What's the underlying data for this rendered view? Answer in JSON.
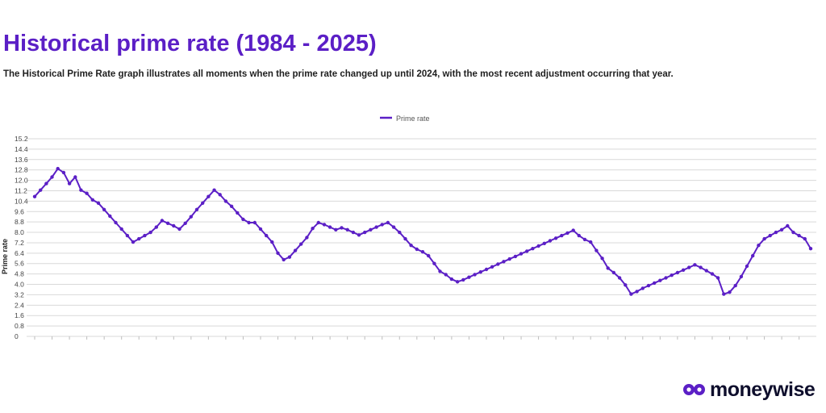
{
  "header": {
    "title": "Historical prime rate (1984 - 2025)",
    "subtitle": "The Historical Prime Rate graph illustrates all moments when the prime rate changed up until 2024, with the most recent adjustment occurring that year."
  },
  "brand": {
    "logo_text": "moneywise",
    "accent_color": "#5b1fc6",
    "logo_color": "#0e0e2c"
  },
  "chart_data": {
    "type": "line",
    "ylabel": "Prime rate",
    "xlabel": "",
    "ylim": [
      0,
      15.2
    ],
    "y_ticks": [
      "0",
      "0.8",
      "1.6",
      "2.4",
      "3.2",
      "4.0",
      "4.8",
      "5.6",
      "6.4",
      "7.2",
      "8.0",
      "8.8",
      "9.6",
      "10.4",
      "11.2",
      "12.0",
      "12.8",
      "13.6",
      "14.4",
      "15.2"
    ],
    "grid": true,
    "legend": "top-center",
    "series": [
      {
        "name": "Prime rate",
        "color": "#5b1fc6",
        "values": [
          10.75,
          11.25,
          11.75,
          12.25,
          12.9,
          12.6,
          11.75,
          12.25,
          11.25,
          11.0,
          10.5,
          10.25,
          9.75,
          9.25,
          8.75,
          8.25,
          7.75,
          7.25,
          7.5,
          7.75,
          8.0,
          8.4,
          8.9,
          8.7,
          8.5,
          8.25,
          8.7,
          9.2,
          9.75,
          10.25,
          10.75,
          11.25,
          10.9,
          10.4,
          10.0,
          9.5,
          9.0,
          8.75,
          8.75,
          8.25,
          7.75,
          7.25,
          6.4,
          5.9,
          6.1,
          6.6,
          7.1,
          7.6,
          8.3,
          8.75,
          8.6,
          8.4,
          8.2,
          8.35,
          8.2,
          8.0,
          7.8,
          8.0,
          8.2,
          8.4,
          8.6,
          8.75,
          8.4,
          8.0,
          7.5,
          7.0,
          6.7,
          6.5,
          6.2,
          5.6,
          5.0,
          4.75,
          4.4,
          4.2,
          4.35,
          4.55,
          4.75,
          4.95,
          5.15,
          5.35,
          5.55,
          5.75,
          5.95,
          6.15,
          6.35,
          6.55,
          6.75,
          6.95,
          7.15,
          7.35,
          7.55,
          7.75,
          7.95,
          8.15,
          7.75,
          7.45,
          7.25,
          6.6,
          6.0,
          5.25,
          4.9,
          4.5,
          3.95,
          3.25,
          3.45,
          3.7,
          3.9,
          4.1,
          4.3,
          4.5,
          4.7,
          4.9,
          5.1,
          5.3,
          5.5,
          5.3,
          5.05,
          4.8,
          4.5,
          3.25,
          3.4,
          3.9,
          4.6,
          5.4,
          6.2,
          7.0,
          7.5,
          7.75,
          8.0,
          8.2,
          8.5,
          8.0,
          7.75,
          7.5,
          6.75
        ]
      }
    ]
  }
}
